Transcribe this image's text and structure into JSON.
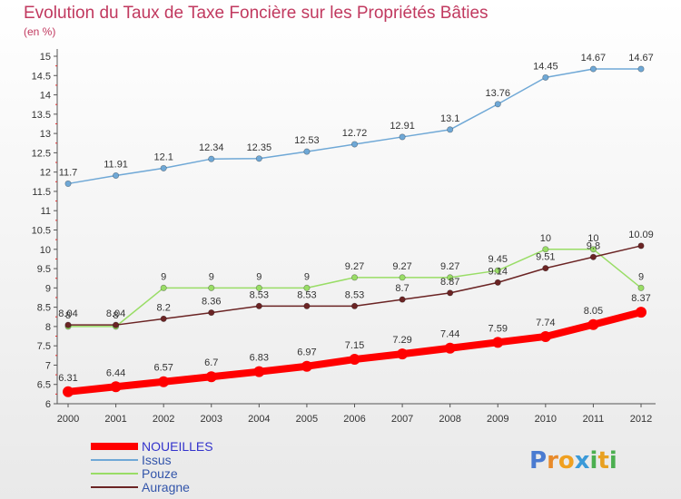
{
  "chart_data": {
    "type": "line",
    "title": "Evolution du Taux de Taxe Foncière sur les Propriétés Bâties",
    "subtitle": "(en %)",
    "x": [
      "2000",
      "2001",
      "2002",
      "2003",
      "2004",
      "2005",
      "2006",
      "2007",
      "2008",
      "2009",
      "2010",
      "2011",
      "2012"
    ],
    "y_ticks": [
      "6",
      "6.5",
      "7",
      "7.5",
      "8",
      "8.5",
      "9",
      "9.5",
      "10",
      "10.5",
      "11",
      "11.5",
      "12",
      "12.5",
      "13",
      "13.5",
      "14",
      "14.5",
      "15"
    ],
    "ylim": [
      6,
      15
    ],
    "grid": false,
    "legend_position": "bottom-left",
    "series": [
      {
        "name": "NOUEILLES",
        "color": "#ff0000",
        "width": 8,
        "values": [
          6.31,
          6.44,
          6.57,
          6.7,
          6.83,
          6.97,
          7.15,
          7.29,
          7.44,
          7.59,
          7.74,
          8.05,
          8.37
        ],
        "labels": [
          "6.31",
          "6.44",
          "6.57",
          "6.7",
          "6.83",
          "6.97",
          "7.15",
          "7.29",
          "7.44",
          "7.59",
          "7.74",
          "8.05",
          "8.37"
        ]
      },
      {
        "name": "Issus",
        "color": "#6fa8d6",
        "width": 1.5,
        "values": [
          11.7,
          11.91,
          12.1,
          12.34,
          12.35,
          12.53,
          12.72,
          12.91,
          13.1,
          13.76,
          14.45,
          14.67,
          14.67
        ],
        "labels": [
          "11.7",
          "11.91",
          "12.1",
          "12.34",
          "12.35",
          "12.53",
          "12.72",
          "12.91",
          "13.1",
          "13.76",
          "14.45",
          "14.67",
          "14.67"
        ]
      },
      {
        "name": "Pouze",
        "color": "#99dd66",
        "width": 1.5,
        "values": [
          8,
          8,
          9,
          9,
          9,
          9,
          9.27,
          9.27,
          9.27,
          9.45,
          10,
          10,
          9
        ],
        "labels": [
          "8",
          "8",
          "9",
          "9",
          "9",
          "9",
          "9.27",
          "9.27",
          "9.27",
          "9.45",
          "10",
          "10",
          "9"
        ]
      },
      {
        "name": "Auragne",
        "color": "#6b2424",
        "width": 1.5,
        "values": [
          8.04,
          8.04,
          8.2,
          8.36,
          8.53,
          8.53,
          8.53,
          8.7,
          8.87,
          9.14,
          9.51,
          9.8,
          10.09
        ],
        "labels": [
          "8.04",
          "8.04",
          "8.2",
          "8.36",
          "8.53",
          "8.53",
          "8.53",
          "8.7",
          "8.87",
          "9.14",
          "9.51",
          "9.8",
          "10.09"
        ]
      }
    ]
  },
  "brand": {
    "name": "Proxiti",
    "letters": [
      "P",
      "r",
      "o",
      "x",
      "i",
      "t",
      "i"
    ]
  }
}
